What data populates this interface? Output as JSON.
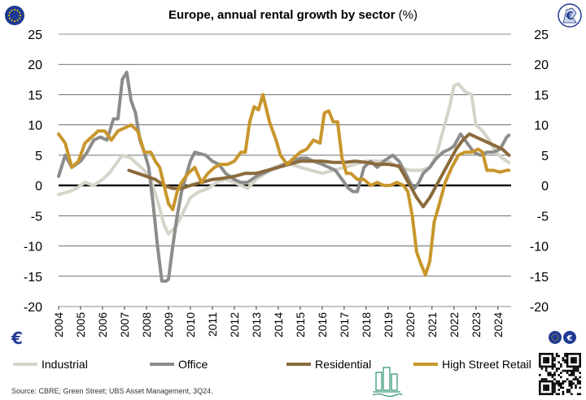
{
  "chart_data": {
    "type": "line",
    "title": "Europe, annual rental growth by sector",
    "title_unit": "(%)",
    "xlabel": "",
    "ylabel": "",
    "ylim": [
      -20,
      25
    ],
    "xlim": [
      2004,
      2024.6
    ],
    "yticks": [
      25,
      20,
      15,
      10,
      5,
      0,
      -5,
      -10,
      -15,
      -20
    ],
    "xticks": [
      2004,
      2005,
      2006,
      2007,
      2008,
      2009,
      2010,
      2011,
      2012,
      2013,
      2014,
      2015,
      2016,
      2017,
      2018,
      2019,
      2020,
      2021,
      2022,
      2023,
      2024
    ],
    "grid": true,
    "legend_position": "bottom",
    "series": [
      {
        "name": "Industrial",
        "color": "#d6d4c9",
        "x": [
          2004,
          2004.5,
          2004.8,
          2005.2,
          2005.6,
          2006.0,
          2006.3,
          2006.6,
          2006.9,
          2007.3,
          2007.6,
          2007.9,
          2008.2,
          2008.5,
          2008.8,
          2009.0,
          2009.3,
          2009.6,
          2010.0,
          2010.4,
          2010.8,
          2011.2,
          2011.6,
          2012.0,
          2012.3,
          2012.6,
          2013.0,
          2013.4,
          2013.8,
          2014.2,
          2014.6,
          2015.0,
          2015.5,
          2016.0,
          2016.5,
          2017.0,
          2017.5,
          2018.0,
          2018.5,
          2019.0,
          2019.5,
          2020.0,
          2020.5,
          2020.9,
          2021.2,
          2021.5,
          2021.8,
          2022.0,
          2022.2,
          2022.5,
          2022.8,
          2023.0,
          2023.3,
          2023.6,
          2023.9,
          2024.2,
          2024.5
        ],
        "y": [
          -1.5,
          -1,
          -0.5,
          0.5,
          0,
          1,
          2,
          3.5,
          5,
          4.5,
          3.5,
          2.5,
          1,
          -2.5,
          -6.5,
          -8,
          -7,
          -5,
          -2,
          -1,
          -0.5,
          0.5,
          1,
          0.5,
          0,
          -0.5,
          1,
          2,
          3,
          3.5,
          3.5,
          3,
          2.5,
          2,
          2.5,
          3,
          3.5,
          4,
          4,
          4,
          3,
          2.5,
          2.5,
          3,
          5,
          9,
          13,
          16.5,
          16.8,
          15.5,
          15,
          10,
          9,
          7.5,
          5.5,
          4.5,
          3.8
        ]
      },
      {
        "name": "Office",
        "color": "#8c8c8a",
        "x": [
          2004,
          2004.3,
          2004.6,
          2005.0,
          2005.3,
          2005.6,
          2005.9,
          2006.2,
          2006.5,
          2006.7,
          2006.9,
          2007.1,
          2007.3,
          2007.5,
          2007.7,
          2007.9,
          2008.1,
          2008.3,
          2008.5,
          2008.7,
          2008.9,
          2009.0,
          2009.2,
          2009.4,
          2009.6,
          2009.8,
          2010.0,
          2010.2,
          2010.4,
          2010.7,
          2011.0,
          2011.3,
          2011.6,
          2012.0,
          2012.3,
          2012.6,
          2013.0,
          2013.3,
          2013.6,
          2014.0,
          2014.3,
          2014.6,
          2015.0,
          2015.3,
          2015.6,
          2016.0,
          2016.3,
          2016.6,
          2016.9,
          2017.2,
          2017.4,
          2017.6,
          2017.9,
          2018.2,
          2018.5,
          2018.8,
          2019.0,
          2019.2,
          2019.5,
          2019.8,
          2020.0,
          2020.2,
          2020.4,
          2020.6,
          2020.9,
          2021.2,
          2021.5,
          2021.8,
          2022.0,
          2022.3,
          2022.6,
          2022.9,
          2023.2,
          2023.5,
          2023.8,
          2024.1,
          2024.4,
          2024.5
        ],
        "y": [
          1.5,
          5,
          3,
          4,
          5.5,
          7.5,
          8,
          7.5,
          11,
          11,
          17.5,
          18.7,
          14,
          12,
          7.5,
          5.5,
          3,
          -3,
          -10,
          -15.8,
          -15.8,
          -15.5,
          -10,
          -5,
          -1,
          1.5,
          4,
          5.5,
          5.3,
          5,
          4,
          3.5,
          2,
          1,
          0.5,
          0.5,
          1.5,
          2,
          2.5,
          3,
          3.5,
          4,
          4.5,
          4.5,
          4,
          3.5,
          3,
          2.5,
          1,
          -0.5,
          -1,
          -1,
          3,
          4,
          3,
          4,
          4.5,
          5,
          4,
          2,
          0.5,
          -0.5,
          0.5,
          2,
          3,
          4.5,
          5.5,
          6,
          6.5,
          8.5,
          7,
          5.5,
          5,
          5.5,
          5.5,
          6,
          8,
          8.3
        ]
      },
      {
        "name": "Residential",
        "color": "#8a6a3c",
        "x": [
          2007.2,
          2007.6,
          2008.0,
          2008.4,
          2008.8,
          2009.2,
          2009.6,
          2010.0,
          2010.5,
          2011.0,
          2011.5,
          2012.0,
          2012.5,
          2013.0,
          2013.5,
          2014.0,
          2014.5,
          2015.0,
          2015.5,
          2016.0,
          2016.5,
          2017.0,
          2017.5,
          2018.0,
          2018.5,
          2019.0,
          2019.5,
          2020.0,
          2020.3,
          2020.6,
          2020.9,
          2021.2,
          2021.5,
          2021.8,
          2022.1,
          2022.4,
          2022.7,
          2023.0,
          2023.3,
          2023.6,
          2023.9,
          2024.2,
          2024.5
        ],
        "y": [
          2.5,
          2,
          1.5,
          1,
          0,
          -0.5,
          -0.5,
          0,
          0.5,
          1,
          1.2,
          1.5,
          2,
          2,
          2.5,
          3,
          3.5,
          4,
          4,
          4,
          3.8,
          3.8,
          4,
          3.8,
          3.5,
          3.5,
          3.2,
          0,
          -2,
          -3.5,
          -2,
          0,
          2,
          4,
          6,
          7.5,
          8.5,
          8,
          7.5,
          7,
          6.5,
          6,
          5
        ]
      },
      {
        "name": "High Street Retail",
        "color": "#c8962c",
        "x": [
          2004,
          2004.3,
          2004.6,
          2004.9,
          2005.2,
          2005.5,
          2005.8,
          2006.1,
          2006.4,
          2006.7,
          2007.0,
          2007.3,
          2007.6,
          2007.9,
          2008.2,
          2008.4,
          2008.6,
          2008.8,
          2009.0,
          2009.2,
          2009.4,
          2009.6,
          2009.9,
          2010.2,
          2010.5,
          2010.8,
          2011.1,
          2011.4,
          2011.7,
          2012.0,
          2012.3,
          2012.5,
          2012.7,
          2012.9,
          2013.1,
          2013.3,
          2013.6,
          2013.9,
          2014.1,
          2014.4,
          2014.7,
          2015.0,
          2015.3,
          2015.6,
          2015.9,
          2016.1,
          2016.3,
          2016.5,
          2016.7,
          2016.9,
          2017.1,
          2017.3,
          2017.6,
          2017.9,
          2018.2,
          2018.5,
          2018.8,
          2019.1,
          2019.4,
          2019.7,
          2019.9,
          2020.1,
          2020.3,
          2020.5,
          2020.7,
          2020.9,
          2021.1,
          2021.3,
          2021.6,
          2021.9,
          2022.2,
          2022.5,
          2022.8,
          2023.1,
          2023.3,
          2023.5,
          2023.8,
          2024.1,
          2024.4,
          2024.5
        ],
        "y": [
          8.5,
          7,
          3,
          4,
          7,
          8,
          9,
          9,
          7.5,
          9,
          9.5,
          10,
          9,
          5.5,
          5.5,
          4,
          3,
          0,
          -3,
          -4,
          -1,
          0.5,
          2,
          3,
          0.5,
          2,
          3,
          3.5,
          3.5,
          4,
          5.5,
          5.5,
          10.5,
          13,
          12.5,
          15,
          10.5,
          7.5,
          5,
          3.5,
          4.5,
          5.5,
          6,
          7.5,
          7,
          12,
          12.3,
          10.5,
          10.5,
          4.5,
          2,
          2,
          1,
          1,
          0,
          0.5,
          0,
          0,
          0.5,
          0,
          -1,
          -5,
          -11,
          -13,
          -14.8,
          -12.5,
          -6,
          -3.5,
          0.5,
          3,
          5,
          5.5,
          5.5,
          6,
          5.5,
          2.5,
          2.5,
          2.2,
          2.5,
          2.5
        ]
      }
    ]
  },
  "source_text": "Source: CBRE; Green Street; UBS Asset Management, 3Q24.",
  "badges": {
    "top_left": "eu-flag-icon",
    "top_right": "euro-map-icon",
    "bottom_left": "euro-icon",
    "bottom_right": "eu-euro-badge-icon",
    "qr": "qr-code-icon",
    "building": "buildings-icon"
  }
}
